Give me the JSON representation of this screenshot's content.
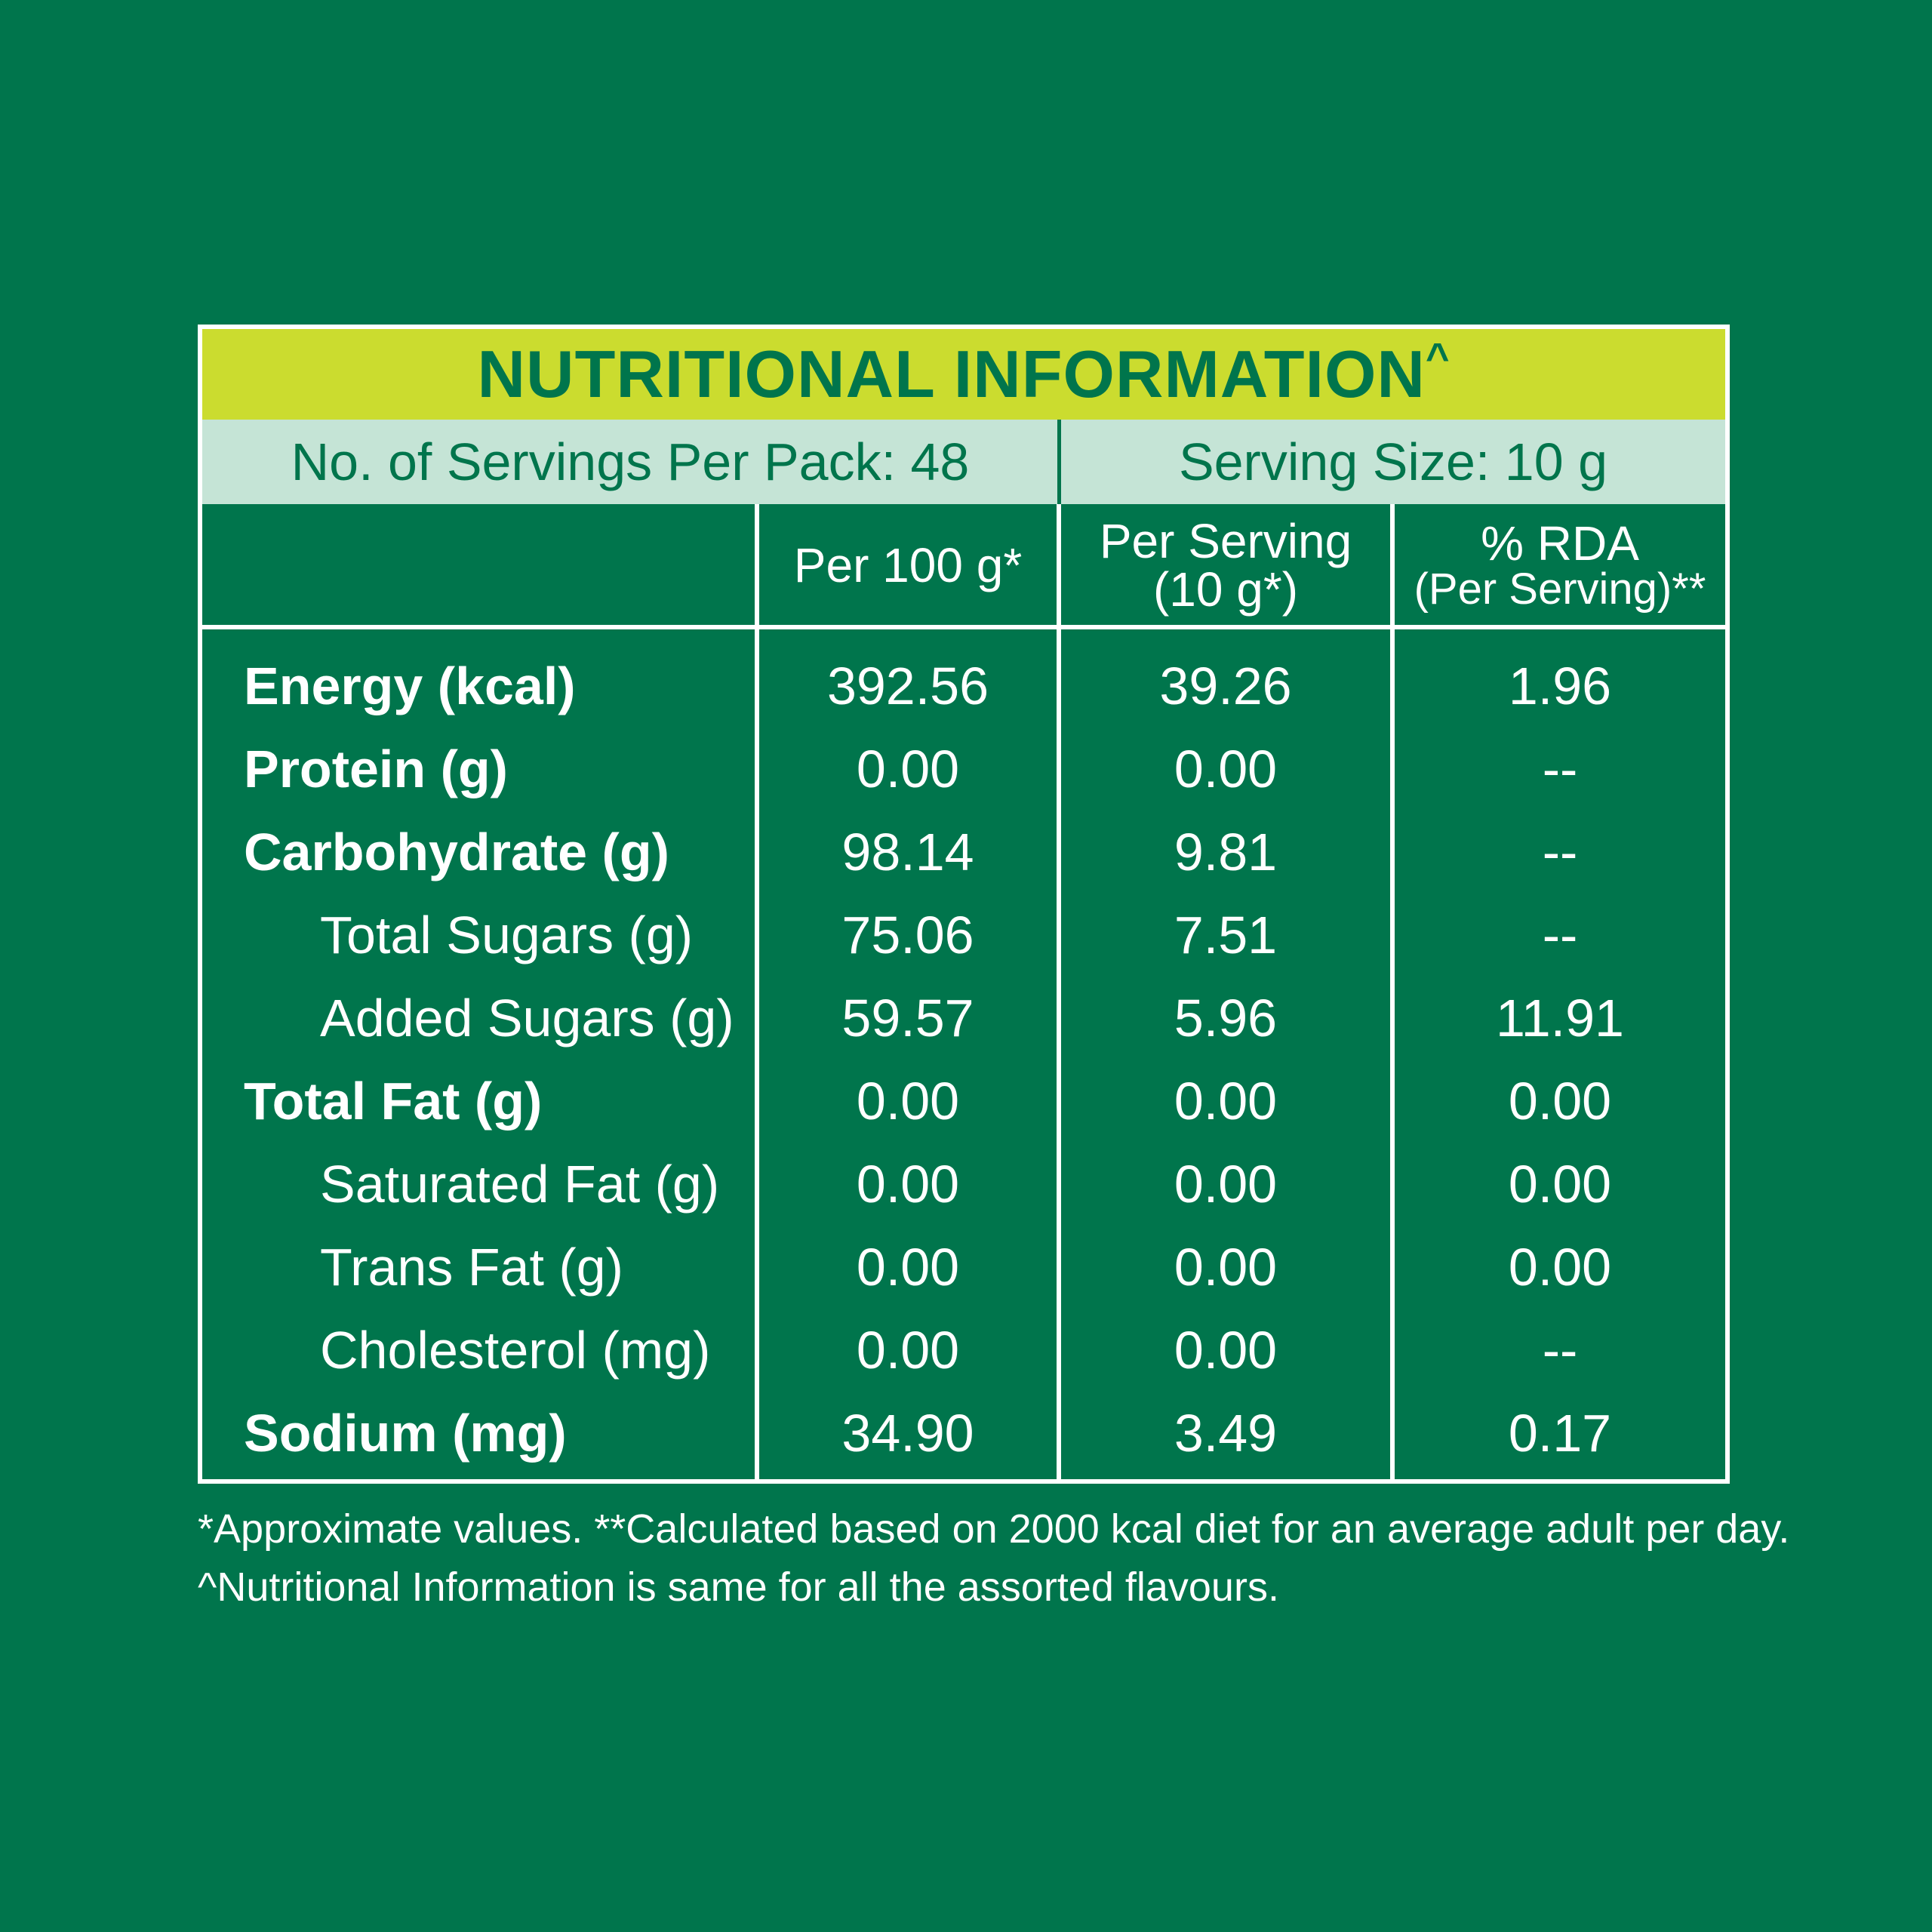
{
  "colors": {
    "background": "#00754c",
    "title_band": "#cbdc2f",
    "servings_band": "#c5e4d6",
    "text_light": "#ffffff",
    "text_dark": "#00754c"
  },
  "title": {
    "text": "NUTRITIONAL INFORMATION",
    "mark": "^"
  },
  "servings": {
    "per_pack": "No. of Servings Per Pack: 48",
    "size": "Serving Size: 10 g"
  },
  "headers": {
    "col1": "Per 100 g*",
    "col2_line1": "Per Serving",
    "col2_line2": "(10 g*)",
    "col3_line1": "% RDA",
    "col3_line2": "(Per Serving)**"
  },
  "rows": [
    {
      "name": "Energy (kcal)",
      "per100": "392.56",
      "serving": "39.26",
      "rda": "1.96"
    },
    {
      "name": "Protein (g)",
      "per100": "0.00",
      "serving": "0.00",
      "rda": "--"
    },
    {
      "name": "Carbohydrate (g)",
      "per100": "98.14",
      "serving": "9.81",
      "rda": "--"
    },
    {
      "name": "Total Sugars (g)",
      "per100": "75.06",
      "serving": "7.51",
      "rda": "--"
    },
    {
      "name": "Added Sugars (g)",
      "per100": "59.57",
      "serving": "5.96",
      "rda": "11.91"
    },
    {
      "name": "Total Fat (g)",
      "per100": "0.00",
      "serving": "0.00",
      "rda": "0.00"
    },
    {
      "name": "Saturated Fat (g)",
      "per100": "0.00",
      "serving": "0.00",
      "rda": "0.00"
    },
    {
      "name": "Trans Fat (g)",
      "per100": "0.00",
      "serving": "0.00",
      "rda": "0.00"
    },
    {
      "name": "Cholesterol (mg)",
      "per100": "0.00",
      "serving": "0.00",
      "rda": "--"
    },
    {
      "name": "Sodium (mg)",
      "per100": "34.90",
      "serving": "3.49",
      "rda": "0.17"
    }
  ],
  "footnotes": {
    "line1": "*Approximate values. **Calculated based on 2000 kcal diet for an average adult per day.",
    "line2": "^Nutritional Information is same for all the assorted flavours."
  }
}
